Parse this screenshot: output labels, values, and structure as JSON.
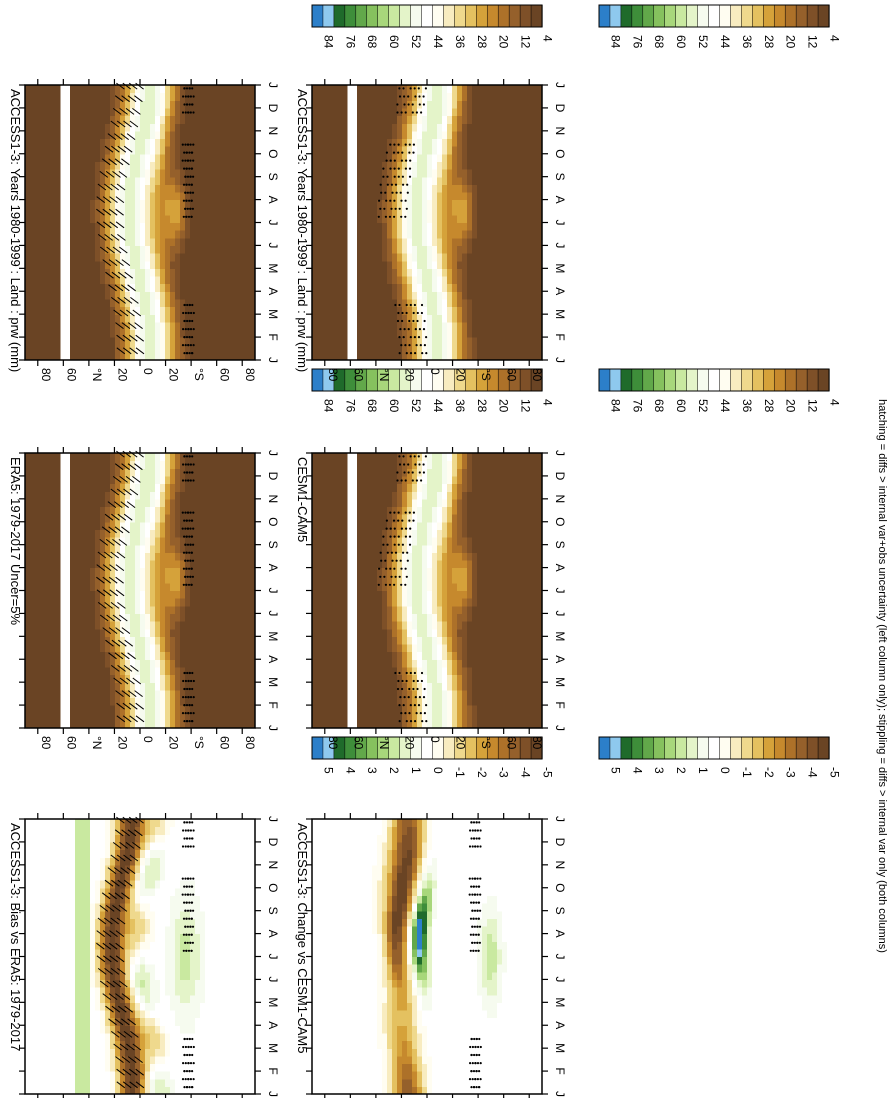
{
  "figure": {
    "footnote": "hatching = diffs > internal var+obs uncertainty (left column only); stippling = diffs > internal var only (both columns)"
  },
  "months": [
    "J",
    "F",
    "M",
    "A",
    "M",
    "J",
    "J",
    "A",
    "S",
    "O",
    "N",
    "D",
    "J"
  ],
  "lat_labels": [
    "80",
    "60",
    "°N",
    "20",
    "0",
    "20",
    "°S",
    "60",
    "80"
  ],
  "colorbars": {
    "abs": {
      "labels": [
        "84",
        "76",
        "68",
        "60",
        "52",
        "44",
        "36",
        "28",
        "20",
        "12",
        "4"
      ],
      "colors": [
        "#2c7fc9",
        "#8ec9ee",
        "#1f6b2b",
        "#3e8e3a",
        "#62a84a",
        "#86c15e",
        "#a8d77b",
        "#c9e9a0",
        "#e4f4c9",
        "#f6fbef",
        "#ffffff",
        "#fffdf1",
        "#f8ecc0",
        "#efd98d",
        "#e4c160",
        "#d5a23a",
        "#c6892d",
        "#ad7129",
        "#95602b",
        "#7e5028",
        "#6a4424"
      ]
    },
    "diff": {
      "labels": [
        "5",
        "4",
        "3",
        "2",
        "1",
        "0",
        "-1",
        "-2",
        "-3",
        "-4",
        "-5"
      ],
      "colors": [
        "#2c7fc9",
        "#8ec9ee",
        "#1f6b2b",
        "#3e8e3a",
        "#62a84a",
        "#86c15e",
        "#a8d77b",
        "#c9e9a0",
        "#e4f4c9",
        "#f6fbef",
        "#ffffff",
        "#fffdf1",
        "#f8ecc0",
        "#efd98d",
        "#e4c160",
        "#d5a23a",
        "#c6892d",
        "#ad7129",
        "#95602b",
        "#7e5028",
        "#6a4424"
      ]
    }
  },
  "chart_data": [
    {
      "type": "heatmap",
      "title": "ACCESS1-3: Years 1980-1999 : Land : prw (mm)",
      "colorbar": "abs",
      "pattern": "abs",
      "hatching": true,
      "stippling": true
    },
    {
      "type": "heatmap",
      "title": "ERA5: 1979-2017 Uncer=5%",
      "colorbar": "abs",
      "pattern": "abs",
      "hatching": true,
      "stippling": true
    },
    {
      "type": "heatmap",
      "title": "ACCESS1-3: Bias vs ERA5: 1979-2017",
      "colorbar": "diff",
      "pattern": "bias",
      "hatching": true,
      "stippling": true
    },
    {
      "type": "heatmap",
      "title": "ACCESS1-3: Years 1980-1999 : Land : prw (mm)",
      "colorbar": "abs",
      "pattern": "abs",
      "hatching": false,
      "stippling": true
    },
    {
      "type": "heatmap",
      "title": "CESM1-CAM5",
      "colorbar": "abs",
      "pattern": "abs",
      "hatching": false,
      "stippling": true
    },
    {
      "type": "heatmap",
      "title": "ACCESS1-3: Change vs CESM1-CAM5",
      "colorbar": "diff",
      "pattern": "change",
      "hatching": false,
      "stippling": true
    }
  ]
}
